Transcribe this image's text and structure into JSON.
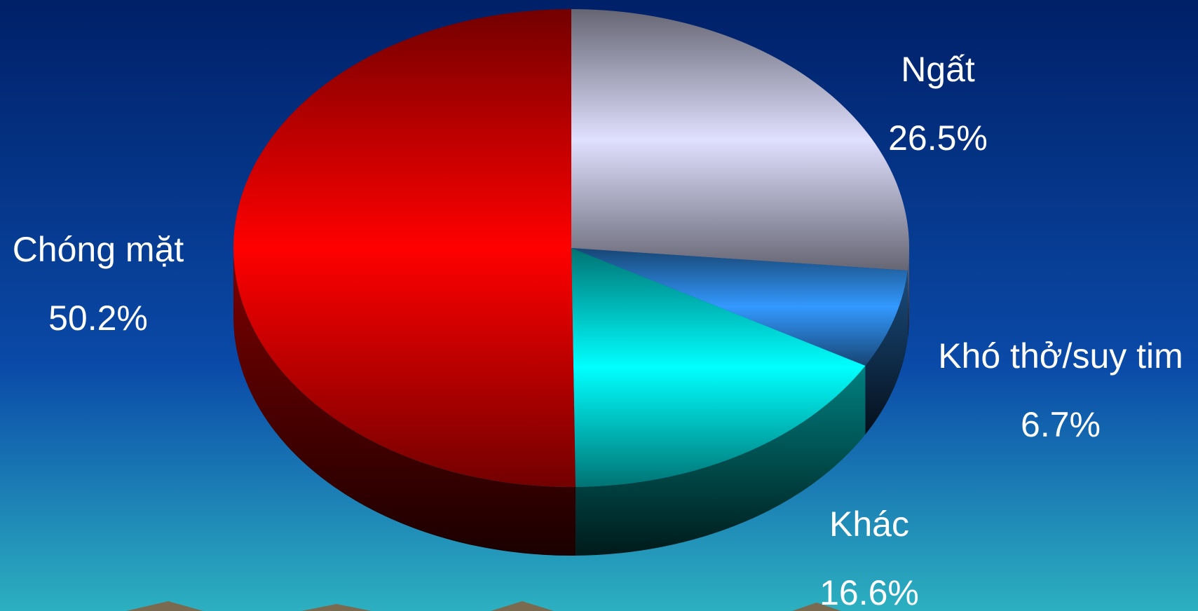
{
  "chart_data": {
    "type": "pie",
    "categories": [
      "Ngất",
      "Khó thở/suy tim",
      "Khác",
      "Chóng mặt"
    ],
    "values": [
      26.5,
      6.7,
      16.6,
      50.2
    ],
    "value_labels": [
      "26.5%",
      "6.7%",
      "16.6%",
      "50.2%"
    ],
    "colors": [
      "#e0e0ff",
      "#3399ff",
      "#00ffff",
      "#ff0000"
    ]
  }
}
